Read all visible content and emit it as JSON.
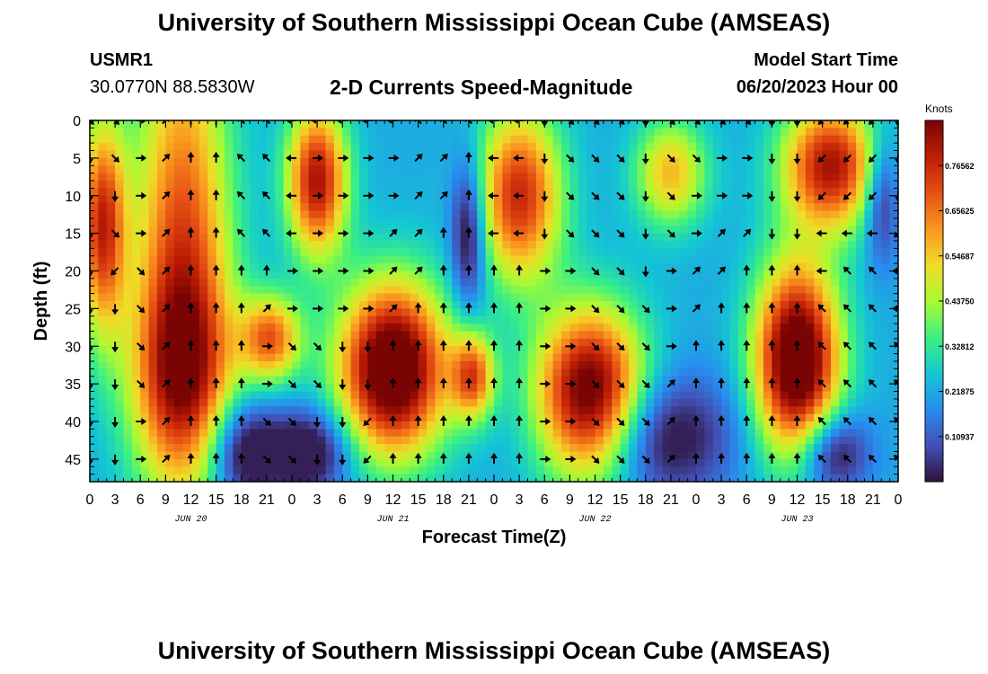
{
  "header": {
    "title": "University of Southern Mississippi Ocean Cube (AMSEAS)",
    "station_name": "USMR1",
    "station_coords": "30.0770N  88.5830W",
    "chart_title": "2-D Currents Speed-Magnitude",
    "model_start_label": "Model Start Time",
    "model_start_value": "06/20/2023 Hour 00"
  },
  "footer": {
    "title_repeat": "University of Southern Mississippi Ocean Cube (AMSEAS)"
  },
  "colors": {
    "arrow": "#000000",
    "axis": "#000000"
  },
  "chart_data": {
    "type": "heatmap",
    "title": "2-D Currents Speed-Magnitude",
    "xlabel": "Forecast Time(Z)",
    "ylabel": "Depth (ft)",
    "x_hours": [
      0,
      96
    ],
    "x_ticks": [
      "0",
      "3",
      "6",
      "9",
      "12",
      "15",
      "18",
      "21",
      "0",
      "3",
      "6",
      "9",
      "12",
      "15",
      "18",
      "21",
      "0",
      "3",
      "6",
      "9",
      "12",
      "15",
      "18",
      "21",
      "0",
      "3",
      "6",
      "9",
      "12",
      "15",
      "18",
      "21",
      "0"
    ],
    "day_labels": [
      {
        "label": "JUN 20",
        "hour": 12
      },
      {
        "label": "JUN 21",
        "hour": 36
      },
      {
        "label": "JUN 22",
        "hour": 60
      },
      {
        "label": "JUN 23",
        "hour": 84
      }
    ],
    "y_range": [
      0,
      48
    ],
    "y_ticks": [
      "0",
      "5",
      "10",
      "15",
      "20",
      "25",
      "30",
      "35",
      "40",
      "45"
    ],
    "colorbar": {
      "unit": "Knots",
      "range": [
        0,
        0.875
      ],
      "ticks": [
        "0.10937",
        "0.21875",
        "0.32812",
        "0.43750",
        "0.54687",
        "0.65625",
        "0.76562"
      ],
      "tick_values": [
        0.10937,
        0.21875,
        0.32812,
        0.4375,
        0.54687,
        0.65625,
        0.76562
      ]
    },
    "arrow_depths": [
      0,
      5,
      10,
      15,
      20,
      25,
      30,
      35,
      40,
      45
    ],
    "arrow_hour_step": 3,
    "arrow_directions_note": "degrees, 0 = north (up)",
    "arrow_directions": [
      [
        135,
        180,
        180,
        180,
        180,
        180,
        180,
        180,
        180,
        180
      ],
      [
        135,
        135,
        180,
        135,
        225,
        180,
        180,
        180,
        180,
        180
      ],
      [
        90,
        90,
        90,
        90,
        135,
        135,
        135,
        135,
        90,
        90
      ],
      [
        45,
        45,
        45,
        45,
        45,
        45,
        45,
        45,
        45,
        45
      ],
      [
        0,
        0,
        0,
        0,
        0,
        0,
        0,
        0,
        0,
        0
      ],
      [
        0,
        0,
        0,
        0,
        0,
        0,
        0,
        0,
        0,
        0
      ],
      [
        315,
        315,
        315,
        315,
        0,
        0,
        0,
        0,
        0,
        0
      ],
      [
        315,
        315,
        315,
        315,
        0,
        45,
        90,
        90,
        135,
        135
      ],
      [
        270,
        270,
        270,
        270,
        90,
        90,
        135,
        135,
        135,
        135
      ],
      [
        270,
        90,
        90,
        90,
        90,
        90,
        135,
        135,
        180,
        180
      ],
      [
        270,
        90,
        90,
        90,
        90,
        90,
        180,
        180,
        180,
        180
      ],
      [
        270,
        90,
        90,
        90,
        90,
        90,
        180,
        180,
        225,
        225
      ],
      [
        270,
        90,
        90,
        45,
        45,
        45,
        0,
        0,
        0,
        0
      ],
      [
        315,
        45,
        45,
        45,
        45,
        0,
        0,
        0,
        0,
        0
      ],
      [
        315,
        45,
        45,
        0,
        0,
        0,
        0,
        0,
        0,
        0
      ],
      [
        315,
        0,
        0,
        0,
        0,
        0,
        0,
        0,
        0,
        0
      ],
      [
        270,
        270,
        270,
        270,
        0,
        0,
        0,
        0,
        0,
        0
      ],
      [
        270,
        270,
        270,
        270,
        0,
        0,
        0,
        0,
        0,
        0
      ],
      [
        180,
        180,
        180,
        180,
        90,
        90,
        90,
        90,
        90,
        90
      ],
      [
        135,
        135,
        135,
        135,
        90,
        90,
        90,
        90,
        90,
        90
      ],
      [
        135,
        135,
        135,
        135,
        135,
        135,
        135,
        135,
        135,
        135
      ],
      [
        135,
        135,
        135,
        135,
        135,
        135,
        135,
        135,
        135,
        135
      ],
      [
        180,
        180,
        180,
        180,
        180,
        135,
        135,
        135,
        135,
        135
      ],
      [
        135,
        135,
        135,
        135,
        90,
        90,
        90,
        45,
        45,
        45
      ],
      [
        135,
        135,
        90,
        90,
        45,
        45,
        0,
        0,
        0,
        0
      ],
      [
        135,
        90,
        90,
        45,
        45,
        0,
        0,
        0,
        0,
        0
      ],
      [
        135,
        90,
        90,
        45,
        0,
        0,
        0,
        0,
        0,
        0
      ],
      [
        180,
        180,
        180,
        180,
        0,
        0,
        0,
        0,
        0,
        0
      ],
      [
        180,
        180,
        180,
        180,
        0,
        0,
        0,
        0,
        0,
        0
      ],
      [
        225,
        225,
        225,
        270,
        270,
        315,
        315,
        315,
        315,
        315
      ],
      [
        225,
        225,
        225,
        270,
        315,
        315,
        315,
        315,
        315,
        315
      ],
      [
        225,
        225,
        225,
        270,
        315,
        315,
        315,
        315,
        315,
        315
      ],
      [
        180,
        180,
        180,
        225,
        270,
        270,
        315,
        315,
        315,
        315
      ]
    ],
    "speed_blobs": [
      {
        "t": 1.5,
        "d": 14,
        "st": 2.0,
        "sd": 10,
        "a": 0.55
      },
      {
        "t": 11,
        "d": 18,
        "st": 4.0,
        "sd": 22,
        "a": 0.5
      },
      {
        "t": 11,
        "d": 34,
        "st": 4.5,
        "sd": 9,
        "a": 0.35
      },
      {
        "t": 21.5,
        "d": 29,
        "st": 2.5,
        "sd": 4,
        "a": 0.45
      },
      {
        "t": 27,
        "d": 8,
        "st": 2.5,
        "sd": 7,
        "a": 0.6
      },
      {
        "t": 36,
        "d": 33,
        "st": 4.5,
        "sd": 8,
        "a": 0.8
      },
      {
        "t": 45.5,
        "d": 34,
        "st": 1.8,
        "sd": 4,
        "a": 0.45
      },
      {
        "t": 51,
        "d": 10,
        "st": 3.5,
        "sd": 8,
        "a": 0.55
      },
      {
        "t": 59.5,
        "d": 37,
        "st": 4.5,
        "sd": 8,
        "a": 0.8
      },
      {
        "t": 69,
        "d": 7,
        "st": 3.0,
        "sd": 5,
        "a": 0.35
      },
      {
        "t": 84,
        "d": 32,
        "st": 3.5,
        "sd": 9,
        "a": 0.8
      },
      {
        "t": 88,
        "d": 6,
        "st": 4.0,
        "sd": 6,
        "a": 0.6
      },
      {
        "t": 18,
        "d": 44,
        "st": 3.0,
        "sd": 5,
        "a": -0.3
      },
      {
        "t": 26,
        "d": 44,
        "st": 3.5,
        "sd": 4,
        "a": -0.3
      },
      {
        "t": 45,
        "d": 15,
        "st": 1.5,
        "sd": 7,
        "a": -0.3
      },
      {
        "t": 66,
        "d": 42,
        "st": 7.0,
        "sd": 6,
        "a": -0.3
      },
      {
        "t": 88,
        "d": 44,
        "st": 3.0,
        "sd": 4,
        "a": -0.3
      },
      {
        "t": 94,
        "d": 10,
        "st": 1.5,
        "sd": 6,
        "a": -0.25
      }
    ],
    "speed_base": 0.22
  }
}
